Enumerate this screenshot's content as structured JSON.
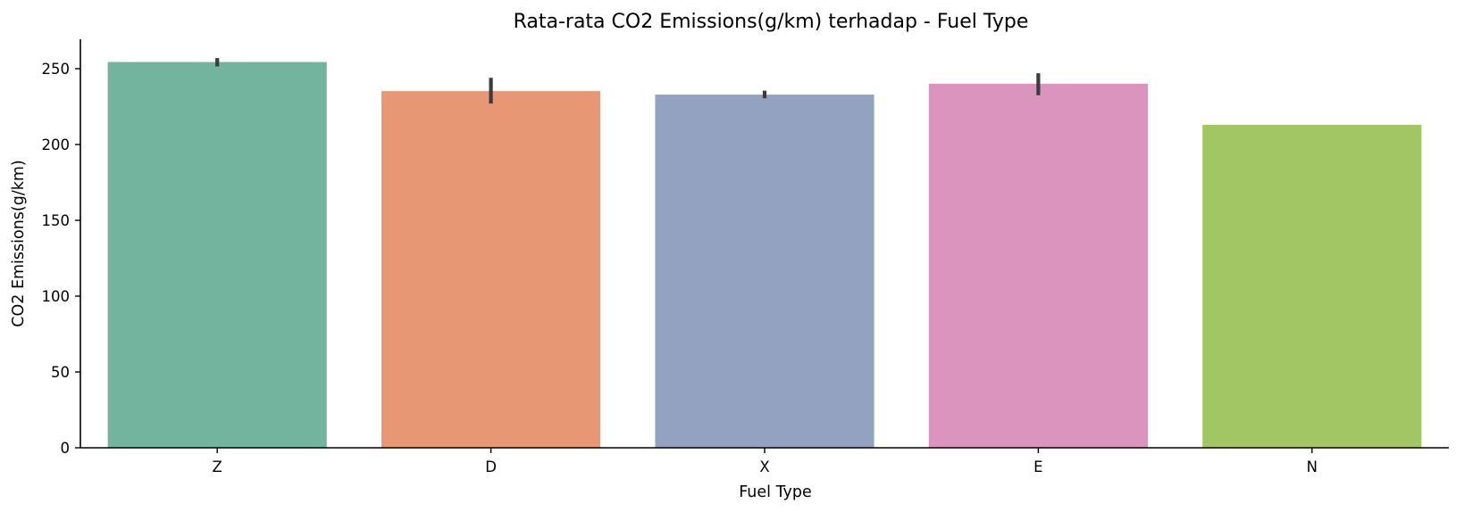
{
  "chart_data": {
    "type": "bar",
    "title": "Rata-rata CO2 Emissions(g/km) terhadap - Fuel Type",
    "xlabel": "Fuel Type",
    "ylabel": "CO2 Emissions(g/km)",
    "categories": [
      "Z",
      "D",
      "X",
      "E",
      "N"
    ],
    "values": [
      254.4,
      235.2,
      232.9,
      240.1,
      213.0
    ],
    "error_bars": [
      [
        251.5,
        257.0
      ],
      [
        227.0,
        244.0
      ],
      [
        230.5,
        235.5
      ],
      [
        232.5,
        247.0
      ],
      null
    ],
    "colors": [
      "#73b49f",
      "#e89774",
      "#93a2c1",
      "#db94be",
      "#a1c663"
    ],
    "ylim": [
      0,
      270
    ],
    "yticks": [
      0,
      50,
      100,
      150,
      200,
      250
    ],
    "grid": false,
    "legend": false
  }
}
